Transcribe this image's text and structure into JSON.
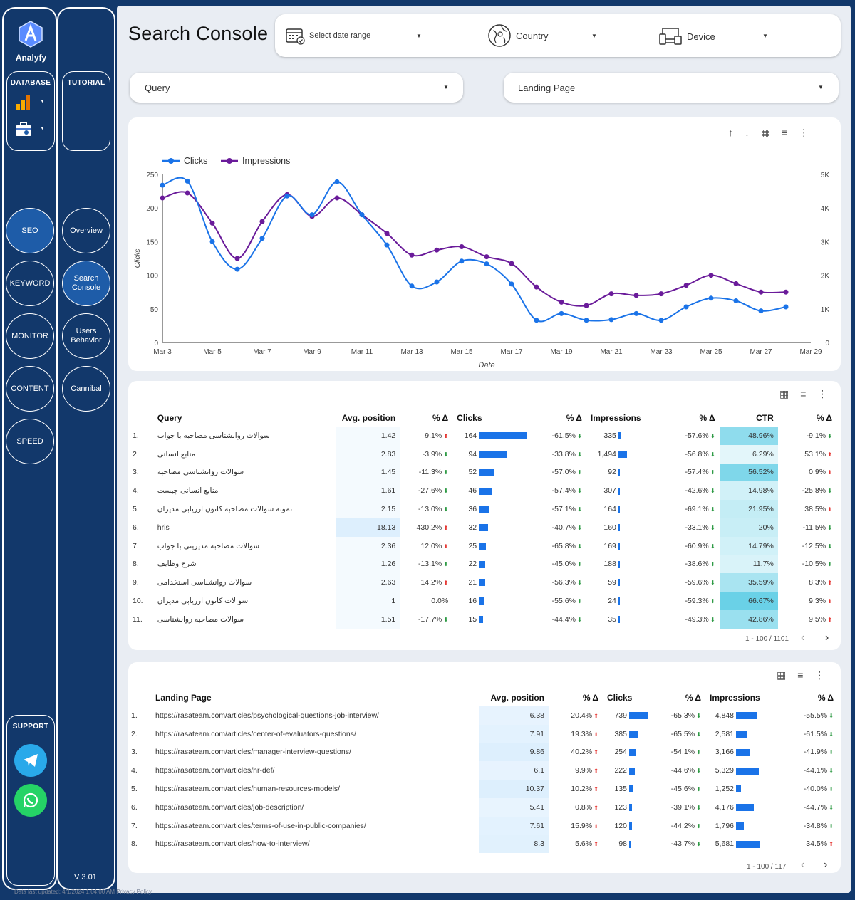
{
  "sidebar": {
    "brand": "Analyfy",
    "database_label": "DATABASE",
    "tutorial_label": "TUTORIAL",
    "nav": [
      "SEO",
      "KEYWORD",
      "MONITOR",
      "CONTENT",
      "SPEED"
    ],
    "subnav": [
      "Overview",
      "Search Console",
      "Users Behavior",
      "Cannibal"
    ],
    "support_label": "SUPPORT",
    "version": "V 3.01",
    "footer": "Data last updated: 4/1/2024 1:04:00 AM  Privacy Policy"
  },
  "header": {
    "title": "Search Console",
    "date_placeholder": "Select date range",
    "country": "Country",
    "device": "Device",
    "query": "Query",
    "landing": "Landing Page"
  },
  "chart_data": {
    "type": "line",
    "x": [
      "Mar 3",
      "Mar 4",
      "Mar 5",
      "Mar 6",
      "Mar 7",
      "Mar 8",
      "Mar 9",
      "Mar 10",
      "Mar 11",
      "Mar 12",
      "Mar 13",
      "Mar 14",
      "Mar 15",
      "Mar 16",
      "Mar 17",
      "Mar 18",
      "Mar 19",
      "Mar 20",
      "Mar 21",
      "Mar 22",
      "Mar 23",
      "Mar 24",
      "Mar 25",
      "Mar 26",
      "Mar 27",
      "Mar 28"
    ],
    "xticks": [
      "Mar 3",
      "Mar 5",
      "Mar 7",
      "Mar 9",
      "Mar 11",
      "Mar 13",
      "Mar 15",
      "Mar 17",
      "Mar 19",
      "Mar 21",
      "Mar 23",
      "Mar 25",
      "Mar 27",
      "Mar 29"
    ],
    "series": [
      {
        "name": "Clicks",
        "color": "#1a73e8",
        "axis": "left",
        "values": [
          234,
          240,
          150,
          109,
          155,
          218,
          190,
          239,
          190,
          145,
          84,
          90,
          121,
          117,
          87,
          33,
          43,
          33,
          34,
          43,
          33,
          53,
          66,
          62,
          47,
          53
        ]
      },
      {
        "name": "Impressions",
        "color": "#6a1b9a",
        "axis": "right",
        "values": [
          4300,
          4450,
          3550,
          2500,
          3600,
          4400,
          3750,
          4300,
          3800,
          3250,
          2600,
          2750,
          2850,
          2550,
          2350,
          1650,
          1200,
          1100,
          1450,
          1400,
          1450,
          1700,
          2000,
          1750,
          1500,
          1500
        ]
      }
    ],
    "xlabel": "Date",
    "ylabel": "Clicks",
    "yticks_left": [
      "0",
      "50",
      "100",
      "150",
      "200",
      "250"
    ],
    "yticks_right": [
      "0",
      "1K",
      "2K",
      "3K",
      "4K",
      "5K"
    ],
    "ylim": [
      0,
      250
    ],
    "ylim_right": [
      0,
      5000
    ],
    "legend": "top-left"
  },
  "query_table": {
    "headers": [
      "Query",
      "Avg. position",
      "% Δ",
      "Clicks",
      "% Δ",
      "Impressions",
      "% Δ",
      "CTR",
      "% Δ"
    ],
    "rows": [
      {
        "q": "سوالات روانشناسی مصاحبه با جواب",
        "pos": "1.42",
        "pd": "9.1%",
        "pdu": true,
        "c": "164",
        "cv": 164,
        "cd": "-61.5%",
        "cdu": false,
        "i": "335",
        "iv": 335,
        "id": "-57.6%",
        "idu": false,
        "ctr": "48.96%",
        "ctrv": 0.4896,
        "ctrd": "-9.1%",
        "ctrdu": false
      },
      {
        "q": "منابع انسانی",
        "pos": "2.83",
        "pd": "-3.9%",
        "pdu": false,
        "c": "94",
        "cv": 94,
        "cd": "-33.8%",
        "cdu": false,
        "i": "1,494",
        "iv": 1494,
        "id": "-56.8%",
        "idu": false,
        "ctr": "6.29%",
        "ctrv": 0.0629,
        "ctrd": "53.1%",
        "ctrdu": true
      },
      {
        "q": "سوالات روانشناسی مصاحبه",
        "pos": "1.45",
        "pd": "-11.3%",
        "pdu": false,
        "c": "52",
        "cv": 52,
        "cd": "-57.0%",
        "cdu": false,
        "i": "92",
        "iv": 92,
        "id": "-57.4%",
        "idu": false,
        "ctr": "56.52%",
        "ctrv": 0.5652,
        "ctrd": "0.9%",
        "ctrdu": true
      },
      {
        "q": "منابع انسانی چیست",
        "pos": "1.61",
        "pd": "-27.6%",
        "pdu": false,
        "c": "46",
        "cv": 46,
        "cd": "-57.4%",
        "cdu": false,
        "i": "307",
        "iv": 307,
        "id": "-42.6%",
        "idu": false,
        "ctr": "14.98%",
        "ctrv": 0.1498,
        "ctrd": "-25.8%",
        "ctrdu": false
      },
      {
        "q": "نمونه سوالات مصاحبه کانون ارزیابی مدیران",
        "pos": "2.15",
        "pd": "-13.0%",
        "pdu": false,
        "c": "36",
        "cv": 36,
        "cd": "-57.1%",
        "cdu": false,
        "i": "164",
        "iv": 164,
        "id": "-69.1%",
        "idu": false,
        "ctr": "21.95%",
        "ctrv": 0.2195,
        "ctrd": "38.5%",
        "ctrdu": true
      },
      {
        "q": "hris",
        "pos": "18.13",
        "pd": "430.2%",
        "pdu": true,
        "c": "32",
        "cv": 32,
        "cd": "-40.7%",
        "cdu": false,
        "i": "160",
        "iv": 160,
        "id": "-33.1%",
        "idu": false,
        "ctr": "20%",
        "ctrv": 0.2,
        "ctrd": "-11.5%",
        "ctrdu": false
      },
      {
        "q": "سوالات مصاحبه مدیریتی با جواب",
        "pos": "2.36",
        "pd": "12.0%",
        "pdu": true,
        "c": "25",
        "cv": 25,
        "cd": "-65.8%",
        "cdu": false,
        "i": "169",
        "iv": 169,
        "id": "-60.9%",
        "idu": false,
        "ctr": "14.79%",
        "ctrv": 0.1479,
        "ctrd": "-12.5%",
        "ctrdu": false
      },
      {
        "q": "شرح وظایف",
        "pos": "1.26",
        "pd": "-13.1%",
        "pdu": false,
        "c": "22",
        "cv": 22,
        "cd": "-45.0%",
        "cdu": false,
        "i": "188",
        "iv": 188,
        "id": "-38.6%",
        "idu": false,
        "ctr": "11.7%",
        "ctrv": 0.117,
        "ctrd": "-10.5%",
        "ctrdu": false
      },
      {
        "q": "سوالات روانشناسی استخدامی",
        "pos": "2.63",
        "pd": "14.2%",
        "pdu": true,
        "c": "21",
        "cv": 21,
        "cd": "-56.3%",
        "cdu": false,
        "i": "59",
        "iv": 59,
        "id": "-59.6%",
        "idu": false,
        "ctr": "35.59%",
        "ctrv": 0.3559,
        "ctrd": "8.3%",
        "ctrdu": true
      },
      {
        "q": "سوالات کانون ارزیابی مدیران",
        "pos": "1",
        "pd": "0.0%",
        "pdu": null,
        "c": "16",
        "cv": 16,
        "cd": "-55.6%",
        "cdu": false,
        "i": "24",
        "iv": 24,
        "id": "-59.3%",
        "idu": false,
        "ctr": "66.67%",
        "ctrv": 0.6667,
        "ctrd": "9.3%",
        "ctrdu": true
      },
      {
        "q": "سوالات مصاحبه روانشناسی",
        "pos": "1.51",
        "pd": "-17.7%",
        "pdu": false,
        "c": "15",
        "cv": 15,
        "cd": "-44.4%",
        "cdu": false,
        "i": "35",
        "iv": 35,
        "id": "-49.3%",
        "idu": false,
        "ctr": "42.86%",
        "ctrv": 0.4286,
        "ctrd": "9.5%",
        "ctrdu": true
      }
    ],
    "pagination": "1 - 100 / 1101"
  },
  "landing_table": {
    "headers": [
      "Landing Page",
      "Avg. position",
      "% Δ",
      "Clicks",
      "% Δ",
      "Impressions",
      "% Δ"
    ],
    "rows": [
      {
        "p": "https://rasateam.com/articles/psychological-questions-job-interview/",
        "pos": "6.38",
        "pd": "20.4%",
        "pdu": true,
        "c": "739",
        "cv": 739,
        "cd": "-65.3%",
        "cdu": false,
        "i": "4,848",
        "iv": 4848,
        "id": "-55.5%",
        "idu": false
      },
      {
        "p": "https://rasateam.com/articles/center-of-evaluators-questions/",
        "pos": "7.91",
        "pd": "19.3%",
        "pdu": true,
        "c": "385",
        "cv": 385,
        "cd": "-65.5%",
        "cdu": false,
        "i": "2,581",
        "iv": 2581,
        "id": "-61.5%",
        "idu": false
      },
      {
        "p": "https://rasateam.com/articles/manager-interview-questions/",
        "pos": "9.86",
        "pd": "40.2%",
        "pdu": true,
        "c": "254",
        "cv": 254,
        "cd": "-54.1%",
        "cdu": false,
        "i": "3,166",
        "iv": 3166,
        "id": "-41.9%",
        "idu": false
      },
      {
        "p": "https://rasateam.com/articles/hr-def/",
        "pos": "6.1",
        "pd": "9.9%",
        "pdu": true,
        "c": "222",
        "cv": 222,
        "cd": "-44.6%",
        "cdu": false,
        "i": "5,329",
        "iv": 5329,
        "id": "-44.1%",
        "idu": false
      },
      {
        "p": "https://rasateam.com/articles/human-resources-models/",
        "pos": "10.37",
        "pd": "10.2%",
        "pdu": true,
        "c": "135",
        "cv": 135,
        "cd": "-45.6%",
        "cdu": false,
        "i": "1,252",
        "iv": 1252,
        "id": "-40.0%",
        "idu": false
      },
      {
        "p": "https://rasateam.com/articles/job-description/",
        "pos": "5.41",
        "pd": "0.8%",
        "pdu": true,
        "c": "123",
        "cv": 123,
        "cd": "-39.1%",
        "cdu": false,
        "i": "4,176",
        "iv": 4176,
        "id": "-44.7%",
        "idu": false
      },
      {
        "p": "https://rasateam.com/articles/terms-of-use-in-public-companies/",
        "pos": "7.61",
        "pd": "15.9%",
        "pdu": true,
        "c": "120",
        "cv": 120,
        "cd": "-44.2%",
        "cdu": false,
        "i": "1,796",
        "iv": 1796,
        "id": "-34.8%",
        "idu": false
      },
      {
        "p": "https://rasateam.com/articles/how-to-interview/",
        "pos": "8.3",
        "pd": "5.6%",
        "pdu": true,
        "c": "98",
        "cv": 98,
        "cd": "-43.7%",
        "cdu": false,
        "i": "5,681",
        "iv": 5681,
        "id": "34.5%",
        "idu": true
      }
    ],
    "pagination": "1 - 100 / 117"
  },
  "colors": {
    "accent": "#1a73e8",
    "impressions": "#6a1b9a",
    "sidebar": "#12386b",
    "ctr_high": "#6cd3e8"
  }
}
